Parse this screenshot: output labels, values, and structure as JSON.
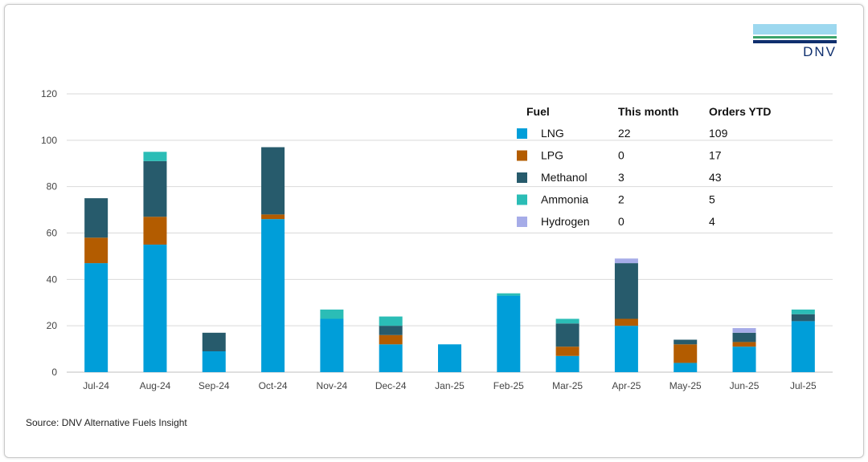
{
  "logo": {
    "text": "DNV"
  },
  "source": "Source: DNV Alternative Fuels Insight",
  "colors": {
    "LNG": "#009ed9",
    "LPG": "#b35c00",
    "Methanol": "#275b6c",
    "Ammonia": "#2bbdb6",
    "Hydrogen": "#a6ace8",
    "grid": "#d9d9d9"
  },
  "legend_table": {
    "headers": [
      "Fuel",
      "This month",
      "Orders YTD"
    ],
    "rows": [
      {
        "fuel": "LNG",
        "this_month": "22",
        "ytd": "109"
      },
      {
        "fuel": "LPG",
        "this_month": "0",
        "ytd": "17"
      },
      {
        "fuel": "Methanol",
        "this_month": "3",
        "ytd": "43"
      },
      {
        "fuel": "Ammonia",
        "this_month": "2",
        "ytd": "5"
      },
      {
        "fuel": "Hydrogen",
        "this_month": "0",
        "ytd": "4"
      }
    ]
  },
  "chart_data": {
    "type": "bar",
    "stacked": true,
    "title": "",
    "xlabel": "",
    "ylabel": "",
    "ylim": [
      0,
      120
    ],
    "yticks": [
      0,
      20,
      40,
      60,
      80,
      100,
      120
    ],
    "grid": true,
    "legend_placement": "top-right",
    "categories": [
      "Jul-24",
      "Aug-24",
      "Sep-24",
      "Oct-24",
      "Nov-24",
      "Dec-24",
      "Jan-25",
      "Feb-25",
      "Mar-25",
      "Apr-25",
      "May-25",
      "Jun-25",
      "Jul-25"
    ],
    "series": [
      {
        "name": "LNG",
        "values": [
          47,
          55,
          9,
          66,
          23,
          12,
          12,
          33,
          7,
          20,
          4,
          11,
          22
        ]
      },
      {
        "name": "LPG",
        "values": [
          11,
          12,
          0,
          2,
          0,
          4,
          0,
          0,
          4,
          3,
          8,
          2,
          0
        ]
      },
      {
        "name": "Methanol",
        "values": [
          17,
          24,
          8,
          29,
          0,
          4,
          0,
          0,
          10,
          24,
          2,
          4,
          3
        ]
      },
      {
        "name": "Ammonia",
        "values": [
          0,
          4,
          0,
          0,
          4,
          4,
          0,
          1,
          2,
          0,
          0,
          0,
          2
        ]
      },
      {
        "name": "Hydrogen",
        "values": [
          0,
          0,
          0,
          0,
          0,
          0,
          0,
          0,
          0,
          2,
          0,
          2,
          0
        ]
      }
    ]
  }
}
